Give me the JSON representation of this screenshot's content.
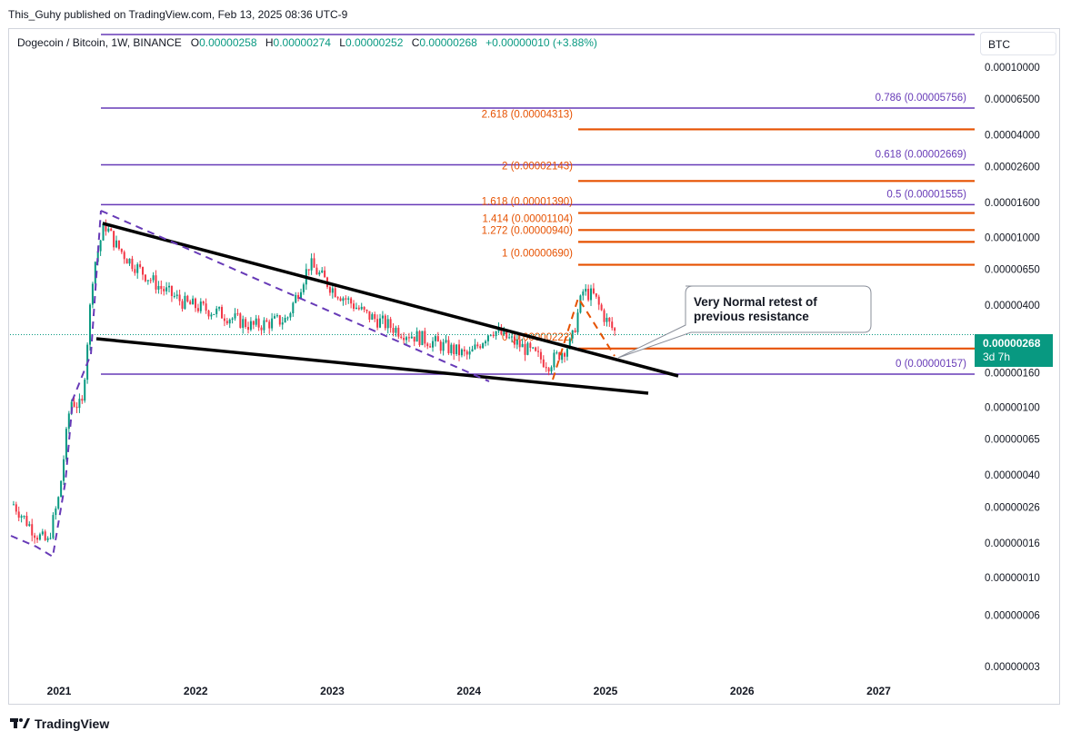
{
  "header": {
    "publisher_line": "This_Guhy published on TradingView.com, Feb 13, 2025 08:36 UTC-9"
  },
  "symbol": {
    "name": "Dogecoin / Bitcoin, 1W, BINANCE",
    "open_label": "O",
    "open": "0.00000258",
    "high_label": "H",
    "high": "0.00000274",
    "low_label": "L",
    "low": "0.00000252",
    "close_label": "C",
    "close": "0.00000268",
    "change": "+0.00000010 (+3.88%)"
  },
  "axis": {
    "currency": "BTC"
  },
  "price_badge": {
    "price": "0.00000268",
    "countdown": "3d 7h"
  },
  "annotation": {
    "text_line1": "Very Normal retest of",
    "text_line2": "previous resistance"
  },
  "footer": {
    "brand": "TradingView"
  },
  "colors": {
    "up": "#089981",
    "down": "#f23645",
    "fib_purple": "#673ab7",
    "fib_orange": "#e65100",
    "trendline": "#000000",
    "badge": "#089981"
  },
  "chart_data": {
    "type": "candlestick",
    "scale": "log",
    "ylabel": "BTC",
    "y_ticks": [
      "0.00010000",
      "0.00006500",
      "0.00004000",
      "0.00002600",
      "0.00001600",
      "0.00001000",
      "0.00000650",
      "0.00000400",
      "0.00000160",
      "0.00000100",
      "0.00000065",
      "0.00000040",
      "0.00000026",
      "0.00000016",
      "0.00000010",
      "0.00000006",
      "0.00000003"
    ],
    "x_ticks": [
      "2021",
      "2022",
      "2023",
      "2024",
      "2025",
      "2026",
      "2027"
    ],
    "last_price": 2.68e-06,
    "series": [
      {
        "name": "Dogecoin / Bitcoin",
        "points": [
          [
            "2020-09",
            2.7e-07
          ],
          [
            "2020-10",
            2.2e-07
          ],
          [
            "2020-11",
            1.8e-07
          ],
          [
            "2020-12",
            1.6e-07
          ],
          [
            "2021-01",
            3e-07
          ],
          [
            "2021-02",
            1.1e-06
          ],
          [
            "2021-03",
            1e-06
          ],
          [
            "2021-04",
            6.5e-06
          ],
          [
            "2021-05",
            1.2e-05
          ],
          [
            "2021-06",
            9e-06
          ],
          [
            "2021-07",
            7.5e-06
          ],
          [
            "2021-08",
            6.5e-06
          ],
          [
            "2021-10",
            5e-06
          ],
          [
            "2021-12",
            4.1e-06
          ],
          [
            "2022-03",
            3.6e-06
          ],
          [
            "2022-06",
            3e-06
          ],
          [
            "2022-09",
            3.3e-06
          ],
          [
            "2022-11",
            7e-06
          ],
          [
            "2023-01",
            5e-06
          ],
          [
            "2023-04",
            3.5e-06
          ],
          [
            "2023-07",
            2.8e-06
          ],
          [
            "2023-10",
            2.4e-06
          ],
          [
            "2024-01",
            2e-06
          ],
          [
            "2024-03",
            2.9e-06
          ],
          [
            "2024-06",
            2.2e-06
          ],
          [
            "2024-08",
            1.8e-06
          ],
          [
            "2024-10",
            2.4e-06
          ],
          [
            "2024-11",
            4.8e-06
          ],
          [
            "2024-12",
            4.5e-06
          ],
          [
            "2025-01",
            3.3e-06
          ],
          [
            "2025-02",
            2.68e-06
          ]
        ]
      }
    ],
    "fib_levels_purple": [
      {
        "label": "0.786 (0.00005756)",
        "value": 5.756e-05
      },
      {
        "label": "0.618 (0.00002669)",
        "value": 2.669e-05
      },
      {
        "label": "0.5 (0.00001555)",
        "value": 1.555e-05
      },
      {
        "label": "0 (0.00000157)",
        "value": 1.57e-06
      }
    ],
    "fib_levels_orange": [
      {
        "label": "2.618 (0.00004313)",
        "value": 4.313e-05
      },
      {
        "label": "2 (0.00002143)",
        "value": 2.143e-05
      },
      {
        "label": "1.618 (0.00001390)",
        "value": 1.39e-05
      },
      {
        "label": "1.414 (0.00001104)",
        "value": 1.104e-05
      },
      {
        "label": "1.272 (0.00000940)",
        "value": 9.4e-06
      },
      {
        "label": "1 (0.00000690)",
        "value": 6.9e-06
      },
      {
        "label": "0 (0.00000222)",
        "value": 2.22e-06
      }
    ],
    "grid": false,
    "legend": "none"
  }
}
